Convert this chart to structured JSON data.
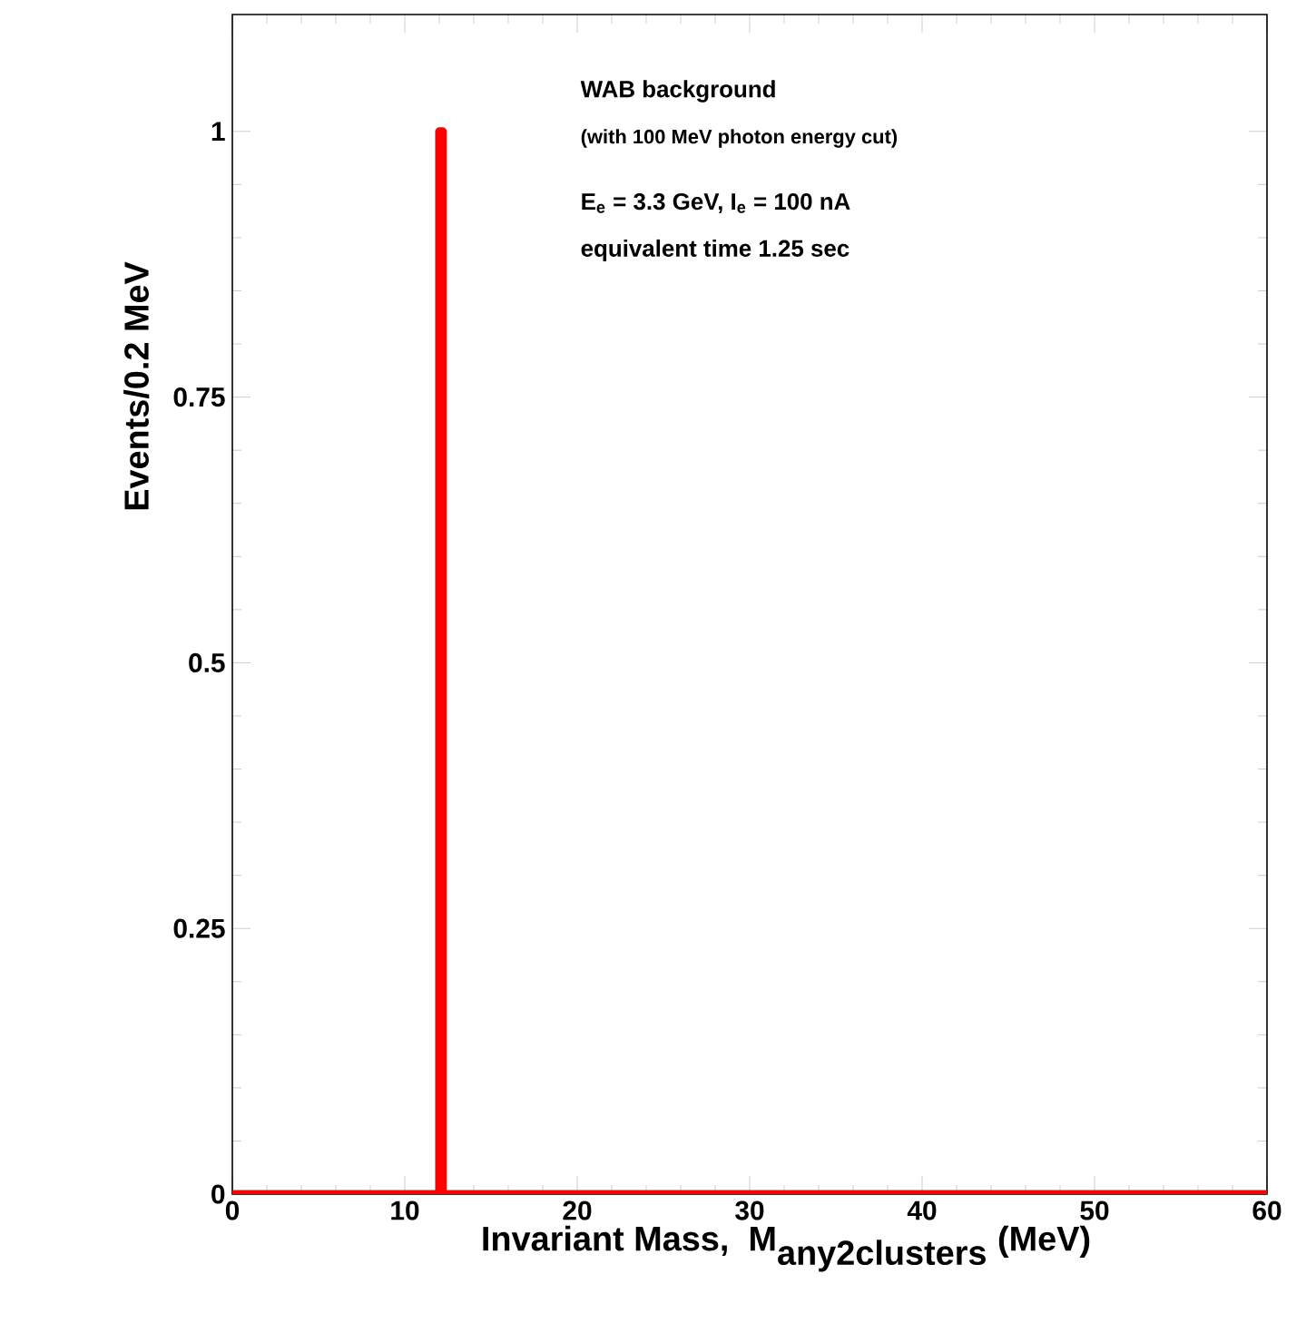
{
  "chart_data": {
    "type": "histogram",
    "xlabel": "\\textbf{Invariant Mass,\\ \\ M}_{\\textbf{any2clusters}}\\textbf{\\ (MeV)}",
    "ylabel": "Events/0.2 MeV",
    "bins": [
      0,
      12.0,
      12.2,
      60
    ],
    "values": [
      0,
      1,
      0
    ],
    "color": "#ff0000",
    "xlim": [
      0,
      60
    ],
    "xticks": [
      0,
      10,
      20,
      30,
      40,
      50,
      60
    ],
    "ylim": [
      0,
      1.11
    ],
    "yticks": [
      0,
      0.25,
      0.5,
      0.75,
      1
    ],
    "annotations": [
      "WAB background",
      "(with 100 MeV photon energy cut)",
      "E$_{e}$ = 3.3 GeV,   I$_{e}$ = 100 nA",
      "equivalent time 1.25 sec"
    ]
  }
}
